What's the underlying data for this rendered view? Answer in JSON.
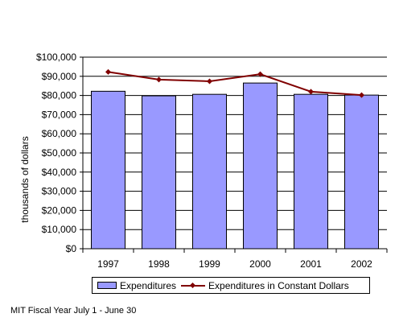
{
  "chart_data": {
    "type": "bar",
    "categories": [
      "1997",
      "1998",
      "1999",
      "2000",
      "2001",
      "2002"
    ],
    "series": [
      {
        "name": "Expenditures",
        "kind": "bar",
        "color": "#9999ff",
        "values": [
          82200,
          79800,
          80600,
          86500,
          80600,
          80200
        ]
      },
      {
        "name": "Expenditures in Constant Dollars",
        "kind": "line",
        "color": "#800000",
        "values": [
          92300,
          88300,
          87400,
          91100,
          82000,
          80200
        ]
      }
    ],
    "ylabel": "thousands of dollars",
    "ylim": [
      0,
      100000
    ],
    "yticks": [
      0,
      10000,
      20000,
      30000,
      40000,
      50000,
      60000,
      70000,
      80000,
      90000,
      100000
    ],
    "ytick_labels": [
      "$0",
      "$10,000",
      "$20,000",
      "$30,000",
      "$40,000",
      "$50,000",
      "$60,000",
      "$70,000",
      "$80,000",
      "$90,000",
      "$100,000"
    ],
    "grid": true,
    "legend_position": "bottom"
  },
  "footnote": "MIT Fiscal Year July 1 - June 30"
}
